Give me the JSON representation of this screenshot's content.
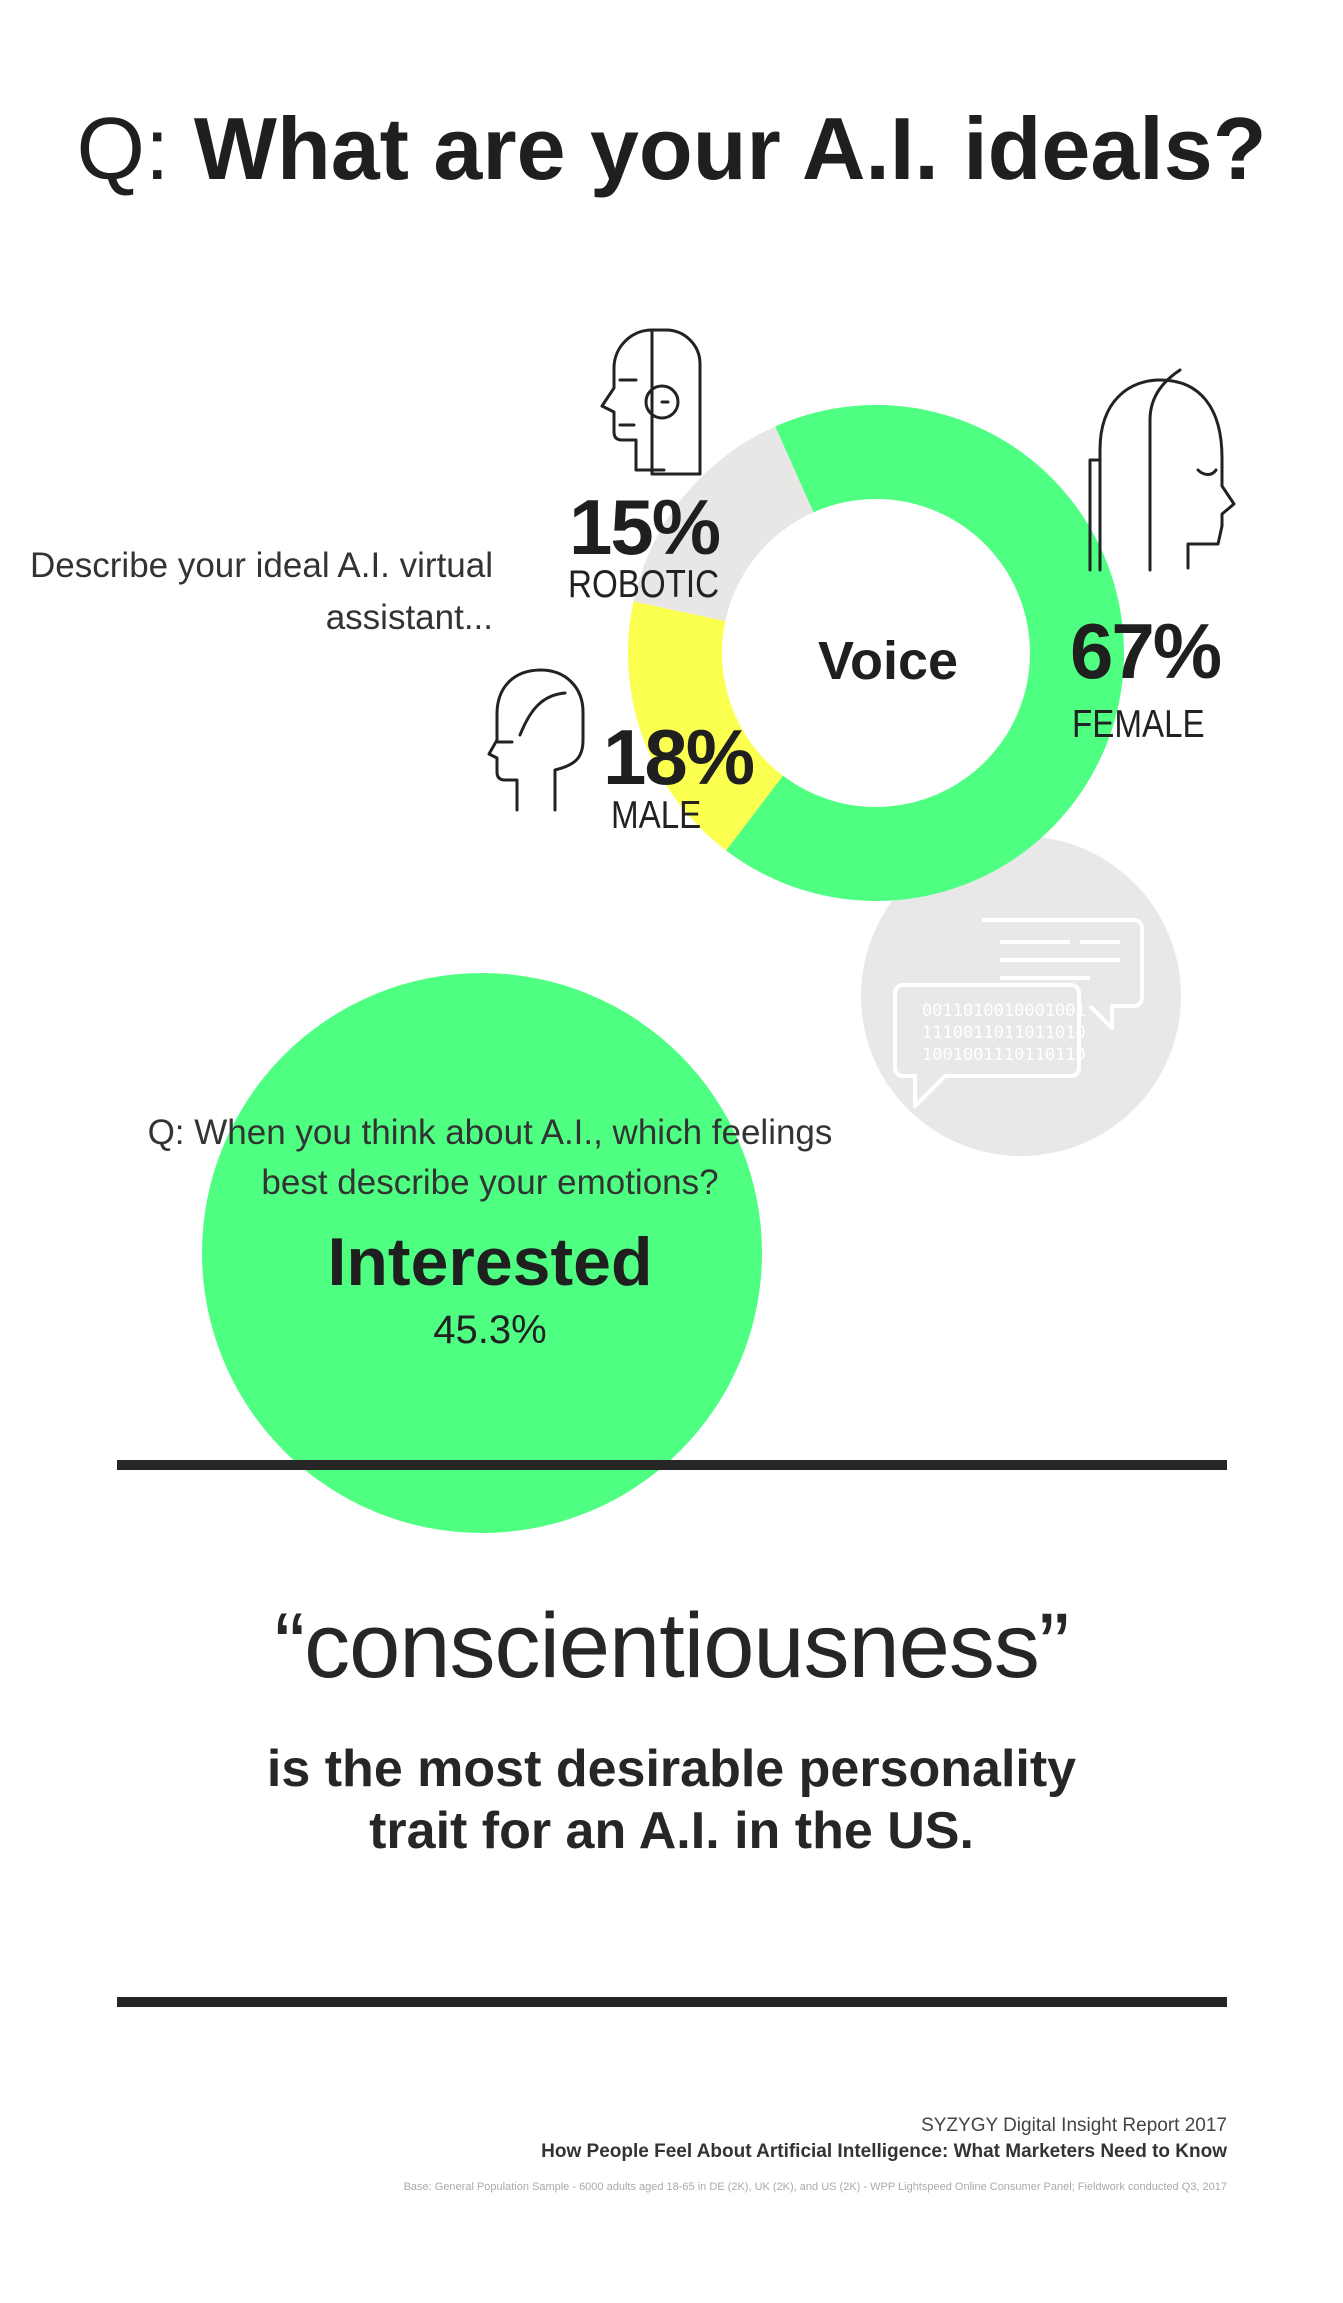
{
  "title": {
    "prefix": "Q:",
    "main": "What are your A.I. ideals?"
  },
  "donut": {
    "prompt": "Describe your ideal A.I. virtual assistant...",
    "center_label": "Voice"
  },
  "chart_data": [
    {
      "type": "pie",
      "title": "Voice",
      "categories": [
        "FEMALE",
        "MALE",
        "ROBOTIC"
      ],
      "values": [
        67,
        18,
        15
      ],
      "labels": [
        "67%",
        "18%",
        "15%"
      ],
      "colors": [
        "#4eff82",
        "#fbff4f",
        "#e9e7e5"
      ],
      "style": "donut"
    },
    {
      "type": "bar",
      "title": "Q: When you think about A.I., which feelings best describe your emotions?",
      "categories": [
        "Interested"
      ],
      "values": [
        45.3
      ],
      "labels": [
        "45.3%"
      ],
      "colors": [
        "#4eff82"
      ]
    }
  ],
  "emotions": {
    "question": "Q: When you think about A.I., which feelings best describe your emotions?",
    "answer": "Interested",
    "value_label": "45.3%"
  },
  "quote": {
    "word": "“conscientiousness”",
    "statement": "is the most desirable personality trait for an A.I. in the US."
  },
  "footer": {
    "report": "SYZYGY Digital Insight Report 2017",
    "subtitle": "How People Feel About Artificial Intelligence: What Marketers Need to Know",
    "base": "Base: General Population Sample - 6000 adults aged 18-65 in DE (2K), UK (2K), and US (2K) - WPP Lightspeed Online Consumer Panel; Fieldwork conducted Q3, 2017"
  },
  "icons": {
    "female": "female-head-icon",
    "male": "male-head-icon",
    "robot": "robot-head-icon",
    "speech": "speech-bubbles-icon"
  },
  "colors": {
    "green": "#4eff82",
    "yellow": "#fbff4f",
    "grey": "#e9e7e5",
    "text": "#262626"
  }
}
